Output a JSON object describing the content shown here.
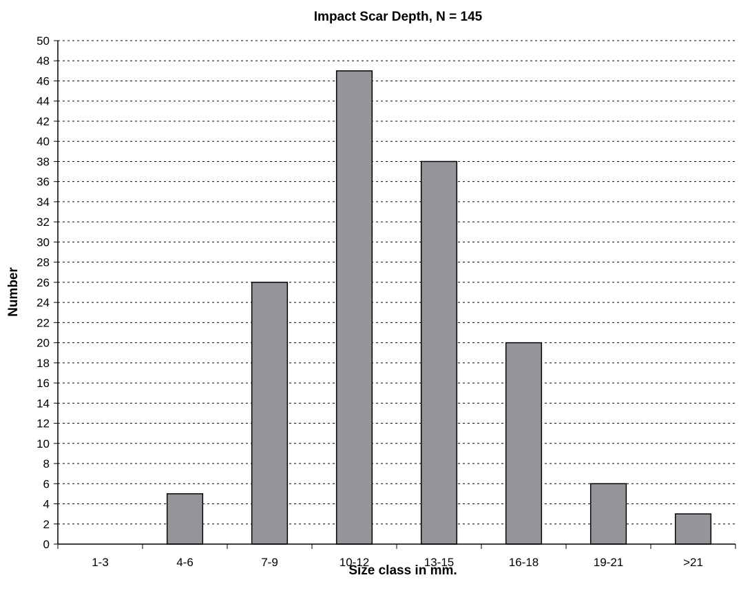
{
  "chart_data": {
    "type": "bar",
    "title": "Impact Scar Depth, N = 145",
    "xlabel": "Size class in mm.",
    "ylabel": "Number",
    "categories": [
      "1-3",
      "4-6",
      "7-9",
      "10-12",
      "13-15",
      "16-18",
      "19-21",
      ">21"
    ],
    "values": [
      0,
      5,
      26,
      47,
      38,
      20,
      6,
      3
    ],
    "ylim": [
      0,
      50
    ],
    "ytick_step": 2,
    "grid": true,
    "bar_color": "#939598",
    "legend": "none"
  }
}
